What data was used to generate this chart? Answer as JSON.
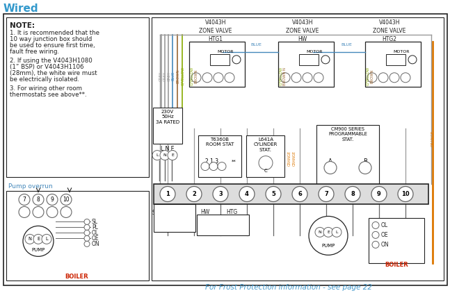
{
  "title": "Wired",
  "title_color": "#3399cc",
  "bg_color": "#ffffff",
  "border_color": "#222222",
  "note_title": "NOTE:",
  "note_lines": [
    "1. It is recommended that the",
    "10 way junction box should",
    "be used to ensure first time,",
    "fault free wiring.",
    "",
    "2. If using the V4043H1080",
    "(1” BSP) or V4043H1106",
    "(28mm), the white wire must",
    "be electrically isolated.",
    "",
    "3. For wiring other room",
    "thermostats see above**."
  ],
  "pump_overrun": "Pump overrun",
  "frost_text": "For Frost Protection information - see page 22",
  "frost_color": "#4499cc",
  "zone_labels": [
    "V4043H\nZONE VALVE\nHTG1",
    "V4043H\nZONE VALVE\nHW",
    "V4043H\nZONE VALVE\nHTG2"
  ],
  "supply": "230V\n50Hz\n3A RATED",
  "blue": "#4488bb",
  "grey": "#999999",
  "brown": "#996633",
  "gyellow": "#88aa00",
  "orange": "#dd7700",
  "red": "#cc2200",
  "black": "#222222",
  "darkgrey": "#666666"
}
